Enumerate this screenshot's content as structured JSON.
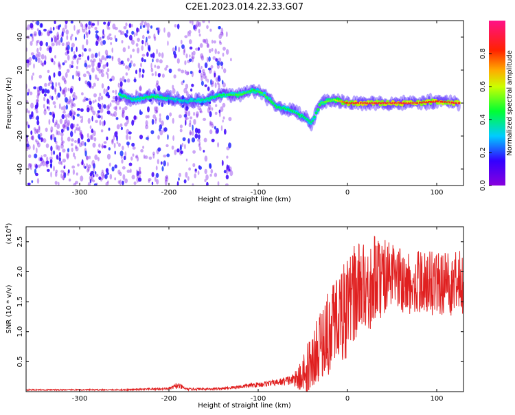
{
  "title": "C2E1.2023.014.22.33.G07",
  "colors": {
    "snr_line": "#e02020",
    "spectrogram_dots": "#7a20e0",
    "ridge_high": "#ff2020"
  },
  "chart_data": [
    {
      "type": "heatmap",
      "title": "C2E1.2023.014.22.33.G07",
      "xlabel": "Height of straight line (km)",
      "ylabel": "Frequency (Hz)",
      "xlim": [
        -360,
        130
      ],
      "ylim": [
        -50,
        50
      ],
      "x_ticks": [
        "-300",
        "-200",
        "-100",
        "0",
        "100"
      ],
      "x_tick_values": [
        -300,
        -200,
        -100,
        0,
        100
      ],
      "y_ticks": [
        "-40",
        "-20",
        "0",
        "20",
        "40"
      ],
      "y_tick_values": [
        -40,
        -20,
        0,
        20,
        40
      ],
      "colorbar": {
        "label": "Normalized spectral amplitude",
        "range": [
          0.0,
          1.0
        ],
        "ticks": [
          "0.0",
          "0.2",
          "0.4",
          "0.6",
          "0.8"
        ],
        "tick_values": [
          0.0,
          0.2,
          0.4,
          0.6,
          0.8
        ],
        "colormap": "rainbow: purple-blue-cyan-green-yellow-orange-red-pink"
      },
      "ridge": {
        "description": "dominant frequency ridge near 0 Hz",
        "points": [
          {
            "x": -255,
            "y": 5,
            "amp": 0.45
          },
          {
            "x": -240,
            "y": 2,
            "amp": 0.4
          },
          {
            "x": -220,
            "y": 4,
            "amp": 0.45
          },
          {
            "x": -200,
            "y": 3,
            "amp": 0.4
          },
          {
            "x": -180,
            "y": 1,
            "amp": 0.35
          },
          {
            "x": -160,
            "y": 2,
            "amp": 0.4
          },
          {
            "x": -140,
            "y": 5,
            "amp": 0.45
          },
          {
            "x": -120,
            "y": 5,
            "amp": 0.5
          },
          {
            "x": -105,
            "y": 8,
            "amp": 0.45
          },
          {
            "x": -95,
            "y": 6,
            "amp": 0.5
          },
          {
            "x": -80,
            "y": -2,
            "amp": 0.45
          },
          {
            "x": -65,
            "y": -4,
            "amp": 0.45
          },
          {
            "x": -50,
            "y": -8,
            "amp": 0.45
          },
          {
            "x": -40,
            "y": -12,
            "amp": 0.4
          },
          {
            "x": -30,
            "y": 0,
            "amp": 0.5
          },
          {
            "x": -15,
            "y": 2,
            "amp": 0.55
          },
          {
            "x": 0,
            "y": 0,
            "amp": 0.85
          },
          {
            "x": 25,
            "y": 0,
            "amp": 0.9
          },
          {
            "x": 50,
            "y": 0,
            "amp": 0.9
          },
          {
            "x": 75,
            "y": 0,
            "amp": 0.9
          },
          {
            "x": 100,
            "y": 1,
            "amp": 0.85
          },
          {
            "x": 125,
            "y": 0,
            "amp": 0.9
          }
        ]
      },
      "noise_region": {
        "x_range": [
          -360,
          -130
        ],
        "y_range": [
          -50,
          50
        ],
        "amp": 0.15
      }
    },
    {
      "type": "line",
      "xlabel": "Height of straight line (km)",
      "ylabel": "SNR (10 * v/v)",
      "y_scale_note": "(x10^4)",
      "y_scale_base": "(x10",
      "y_scale_exp": "4",
      "xlim": [
        -360,
        130
      ],
      "ylim": [
        0,
        2.75
      ],
      "x_ticks": [
        "-300",
        "-200",
        "-100",
        "0",
        "100"
      ],
      "x_tick_values": [
        -300,
        -200,
        -100,
        0,
        100
      ],
      "y_ticks": [
        "0.5",
        "1.0",
        "1.5",
        "2.0",
        "2.5"
      ],
      "y_tick_values": [
        0.5,
        1.0,
        1.5,
        2.0,
        2.5
      ],
      "series": [
        {
          "envelope": [
            {
              "x": -360,
              "mean": 0.03,
              "spread": 0.01
            },
            {
              "x": -250,
              "mean": 0.03,
              "spread": 0.01
            },
            {
              "x": -200,
              "mean": 0.05,
              "spread": 0.02
            },
            {
              "x": -190,
              "mean": 0.1,
              "spread": 0.05
            },
            {
              "x": -180,
              "mean": 0.04,
              "spread": 0.02
            },
            {
              "x": -140,
              "mean": 0.05,
              "spread": 0.02
            },
            {
              "x": -110,
              "mean": 0.1,
              "spread": 0.04
            },
            {
              "x": -80,
              "mean": 0.15,
              "spread": 0.05
            },
            {
              "x": -60,
              "mean": 0.2,
              "spread": 0.1
            },
            {
              "x": -50,
              "mean": 0.35,
              "spread": 0.3
            },
            {
              "x": -40,
              "mean": 0.5,
              "spread": 0.45
            },
            {
              "x": -30,
              "mean": 0.8,
              "spread": 0.6
            },
            {
              "x": -20,
              "mean": 1.1,
              "spread": 0.7
            },
            {
              "x": -10,
              "mean": 1.3,
              "spread": 0.7
            },
            {
              "x": 0,
              "mean": 1.5,
              "spread": 0.8
            },
            {
              "x": 10,
              "mean": 1.7,
              "spread": 0.8
            },
            {
              "x": 20,
              "mean": 1.8,
              "spread": 0.7
            },
            {
              "x": 30,
              "mean": 1.9,
              "spread": 0.7
            },
            {
              "x": 40,
              "mean": 1.95,
              "spread": 0.6
            },
            {
              "x": 60,
              "mean": 1.9,
              "spread": 0.5
            },
            {
              "x": 80,
              "mean": 1.85,
              "spread": 0.5
            },
            {
              "x": 100,
              "mean": 1.85,
              "spread": 0.5
            },
            {
              "x": 130,
              "mean": 1.85,
              "spread": 0.5
            }
          ]
        }
      ]
    }
  ]
}
